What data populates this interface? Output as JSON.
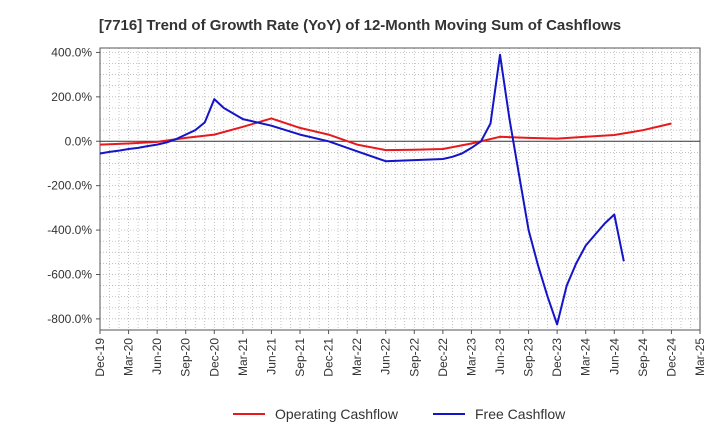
{
  "chart_data": {
    "type": "line",
    "title": "[7716]  Trend of Growth Rate (YoY) of 12-Month Moving Sum of Cashflows",
    "xlabel": "",
    "ylabel": "",
    "x_ticks": [
      "Dec-19",
      "Mar-20",
      "Jun-20",
      "Sep-20",
      "Dec-20",
      "Mar-21",
      "Jun-21",
      "Sep-21",
      "Dec-21",
      "Mar-22",
      "Jun-22",
      "Sep-22",
      "Dec-22",
      "Mar-23",
      "Jun-23",
      "Sep-23",
      "Dec-23",
      "Mar-24",
      "Jun-24",
      "Sep-24",
      "Dec-24",
      "Mar-25"
    ],
    "y_ticks": [
      "400.0%",
      "200.0%",
      "0.0%",
      "-200.0%",
      "-400.0%",
      "-600.0%",
      "-800.0%"
    ],
    "ylim": [
      -850,
      420
    ],
    "grid": true,
    "legend_position": "bottom",
    "series": [
      {
        "name": "Operating Cashflow",
        "color": "#e8191d",
        "points": [
          [
            "Dec-19",
            -15
          ],
          [
            "Mar-20",
            -10
          ],
          [
            "Jun-20",
            -3
          ],
          [
            "Sep-20",
            15
          ],
          [
            "Dec-20",
            30
          ],
          [
            "Mar-21",
            65
          ],
          [
            "Jun-21",
            103
          ],
          [
            "Sep-21",
            60
          ],
          [
            "Dec-21",
            30
          ],
          [
            "Mar-22",
            -15
          ],
          [
            "Jun-22",
            -40
          ],
          [
            "Sep-22",
            -38
          ],
          [
            "Dec-22",
            -35
          ],
          [
            "Mar-23",
            -10
          ],
          [
            "Jun-23",
            20
          ],
          [
            "Sep-23",
            15
          ],
          [
            "Dec-23",
            12
          ],
          [
            "Mar-24",
            20
          ],
          [
            "Jun-24",
            28
          ],
          [
            "Sep-24",
            50
          ],
          [
            "Dec-24",
            80
          ]
        ]
      },
      {
        "name": "Free Cashflow",
        "color": "#1414c8",
        "points": [
          [
            "Dec-19",
            -55
          ],
          [
            "Jan-20",
            -48
          ],
          [
            "Feb-20",
            -42
          ],
          [
            "Mar-20",
            -35
          ],
          [
            "Apr-20",
            -30
          ],
          [
            "May-20",
            -22
          ],
          [
            "Jun-20",
            -15
          ],
          [
            "Jul-20",
            -5
          ],
          [
            "Aug-20",
            10
          ],
          [
            "Sep-20",
            30
          ],
          [
            "Oct-20",
            50
          ],
          [
            "Nov-20",
            85
          ],
          [
            "Dec-20",
            190
          ],
          [
            "Jan-21",
            150
          ],
          [
            "Feb-21",
            125
          ],
          [
            "Mar-21",
            100
          ],
          [
            "Jun-21",
            70
          ],
          [
            "Sep-21",
            30
          ],
          [
            "Dec-21",
            0
          ],
          [
            "Mar-22",
            -45
          ],
          [
            "Jun-22",
            -90
          ],
          [
            "Sep-22",
            -85
          ],
          [
            "Dec-22",
            -80
          ],
          [
            "Jan-23",
            -70
          ],
          [
            "Feb-23",
            -55
          ],
          [
            "Mar-23",
            -30
          ],
          [
            "Apr-23",
            0
          ],
          [
            "May-23",
            80
          ],
          [
            "Jun-23",
            390
          ],
          [
            "Jul-23",
            100
          ],
          [
            "Aug-23",
            -150
          ],
          [
            "Sep-23",
            -400
          ],
          [
            "Oct-23",
            -560
          ],
          [
            "Nov-23",
            -700
          ],
          [
            "Dec-23",
            -825
          ],
          [
            "Jan-24",
            -650
          ],
          [
            "Feb-24",
            -550
          ],
          [
            "Mar-24",
            -470
          ],
          [
            "Apr-24",
            -420
          ],
          [
            "May-24",
            -370
          ],
          [
            "Jun-24",
            -330
          ],
          [
            "Jul-24",
            -540
          ]
        ]
      }
    ]
  }
}
